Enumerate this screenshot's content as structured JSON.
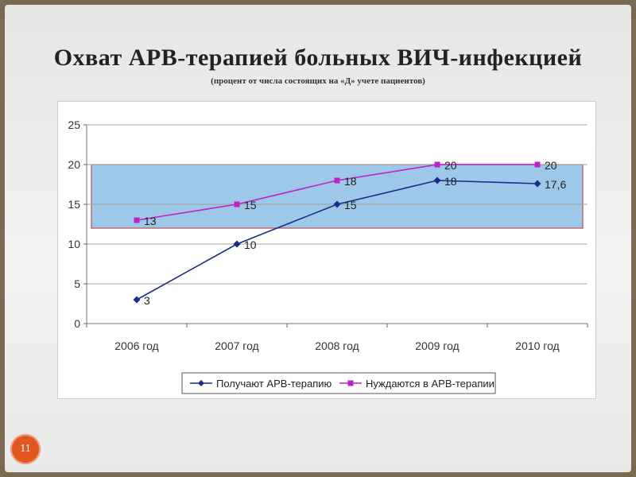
{
  "slide": {
    "title": "Охват АРВ-терапией больных ВИЧ-инфекцией",
    "subtitle": "(процент от числа состоящих на «Д» учете пациентов)",
    "number": "11"
  },
  "chart_data": {
    "type": "line",
    "categories": [
      "2006 год",
      "2007 год",
      "2008 год",
      "2009 год",
      "2010 год"
    ],
    "ylim": [
      0,
      25
    ],
    "yticks": [
      0,
      5,
      10,
      15,
      20,
      25
    ],
    "band": [
      12,
      20
    ],
    "grid": true,
    "legend_position": "bottom",
    "series": [
      {
        "name": "Получают АРВ-терапию",
        "values": [
          3,
          10,
          15,
          18,
          17.6
        ],
        "labels": [
          "3",
          "10",
          "15",
          "18",
          "17,6"
        ],
        "color": "#1a2d8c",
        "marker": "diamond"
      },
      {
        "name": "Нуждаются в АРВ-терапии",
        "values": [
          13,
          15,
          18,
          20,
          20
        ],
        "labels": [
          "13",
          "15",
          "18",
          "20",
          "20"
        ],
        "color": "#c020c8",
        "marker": "square"
      }
    ],
    "colors": {
      "band_fill": "#9dc8ea",
      "band_stroke": "#c0504d",
      "grid": "#a0a0a0"
    }
  }
}
